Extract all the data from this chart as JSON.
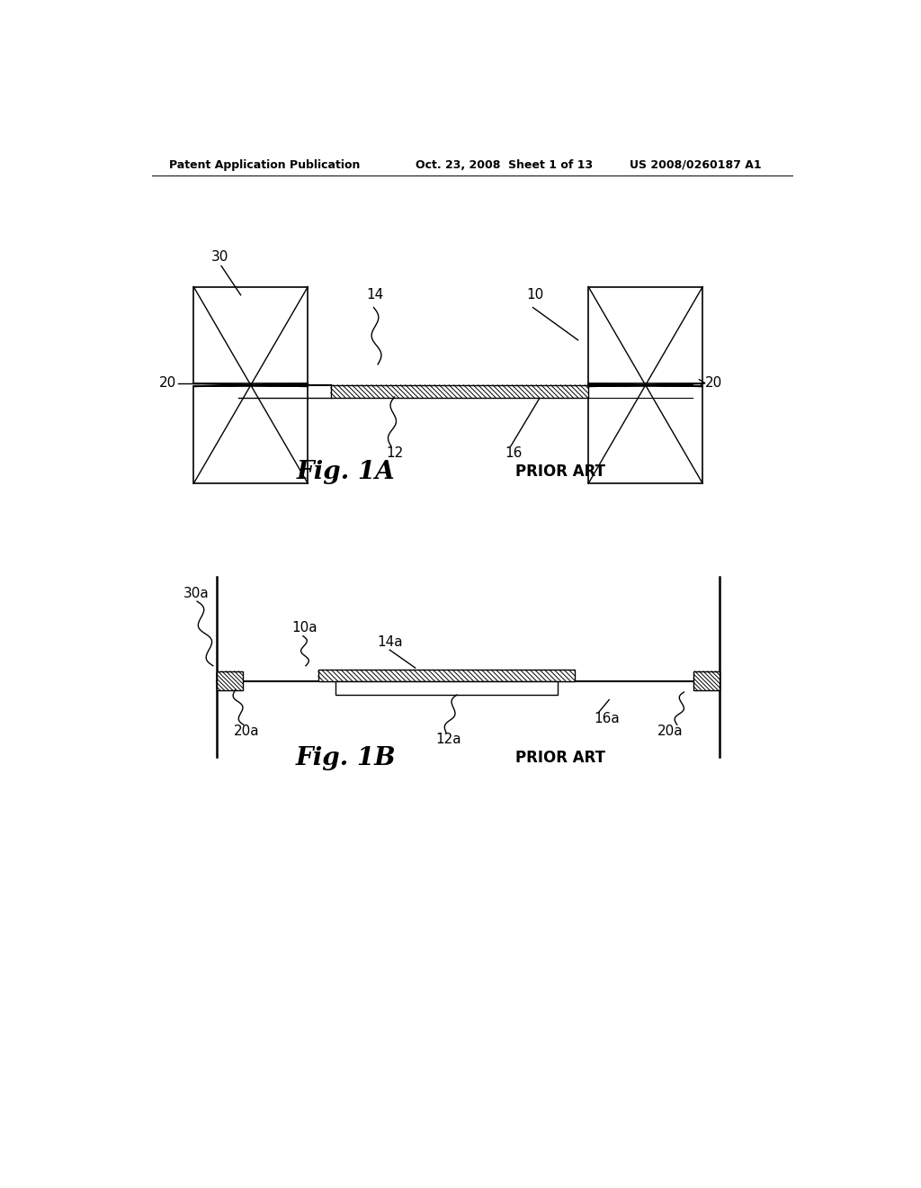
{
  "header_left": "Patent Application Publication",
  "header_center": "Oct. 23, 2008  Sheet 1 of 13",
  "header_right": "US 2008/0260187 A1",
  "fig1a_title": "Fig. 1A",
  "fig1b_title": "Fig. 1B",
  "prior_art": "PRIOR ART",
  "background_color": "#ffffff",
  "line_color": "#000000"
}
